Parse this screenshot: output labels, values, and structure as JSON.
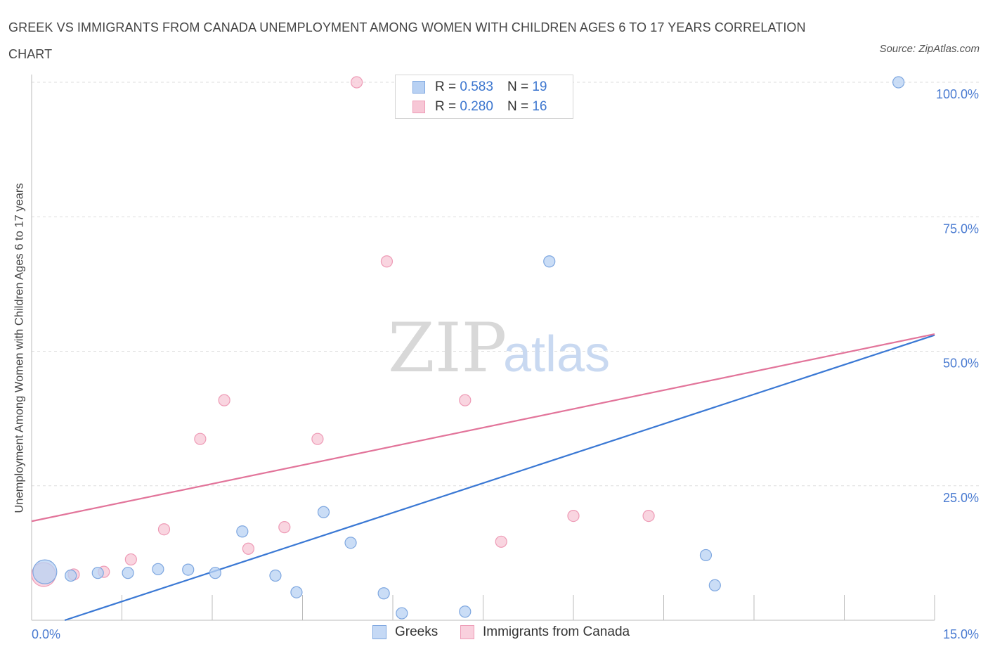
{
  "title": "GREEK VS IMMIGRANTS FROM CANADA UNEMPLOYMENT AMONG WOMEN WITH CHILDREN AGES 6 TO 17 YEARS CORRELATION CHART",
  "source": "Source: ZipAtlas.com",
  "watermark": {
    "zip": "ZIP",
    "atlas": "atlas"
  },
  "colors": {
    "greeks_fill": "#b8d1f3",
    "greeks_stroke": "#7ea7e0",
    "greeks_line": "#3a78d4",
    "canada_fill": "#f7c7d6",
    "canada_stroke": "#ee9bb6",
    "canada_line": "#e2749a",
    "axis_label": "#4a7bd1",
    "grid": "#dddddd"
  },
  "legend": {
    "rows": [
      {
        "r_label": "R =",
        "r_value": "0.583",
        "n_label": "N =",
        "n_value": "19"
      },
      {
        "r_label": "R =",
        "r_value": "0.280",
        "n_label": "N =",
        "n_value": "16"
      }
    ]
  },
  "chart_data": {
    "type": "scatter",
    "title": "GREEK VS IMMIGRANTS FROM CANADA UNEMPLOYMENT AMONG WOMEN WITH CHILDREN AGES 6 TO 17 YEARS CORRELATION CHART",
    "xlabel": "",
    "ylabel": "Unemployment Among Women with Children Ages 6 to 17 years",
    "xlim": [
      0,
      15
    ],
    "ylim": [
      0,
      100
    ],
    "x_tick_labels": [
      "0.0%",
      "15.0%"
    ],
    "y_ticks": [
      25,
      50,
      75,
      100
    ],
    "y_tick_labels": [
      "25.0%",
      "50.0%",
      "75.0%",
      "100.0%"
    ],
    "grid": true,
    "legend_position": "top-center",
    "series": [
      {
        "name": "Greeks",
        "r": 0.583,
        "n": 19,
        "points": [
          {
            "x": 0.22,
            "y": 9.0,
            "size": "large"
          },
          {
            "x": 0.65,
            "y": 8.3
          },
          {
            "x": 1.1,
            "y": 8.8
          },
          {
            "x": 1.6,
            "y": 8.8
          },
          {
            "x": 2.1,
            "y": 9.5
          },
          {
            "x": 2.6,
            "y": 9.4
          },
          {
            "x": 3.05,
            "y": 8.8
          },
          {
            "x": 3.5,
            "y": 16.5
          },
          {
            "x": 4.05,
            "y": 8.3
          },
          {
            "x": 4.4,
            "y": 5.2
          },
          {
            "x": 4.85,
            "y": 20.1
          },
          {
            "x": 5.3,
            "y": 14.4
          },
          {
            "x": 5.85,
            "y": 5.0
          },
          {
            "x": 6.15,
            "y": 1.3
          },
          {
            "x": 7.2,
            "y": 1.6
          },
          {
            "x": 8.6,
            "y": 66.7
          },
          {
            "x": 11.2,
            "y": 12.1
          },
          {
            "x": 11.35,
            "y": 6.5
          },
          {
            "x": 14.4,
            "y": 100.0
          }
        ],
        "trend": {
          "x": [
            0.55,
            15.0
          ],
          "y": [
            0.0,
            53.0
          ]
        }
      },
      {
        "name": "Immigrants from Canada",
        "r": 0.28,
        "n": 16,
        "points": [
          {
            "x": 0.2,
            "y": 8.5,
            "size": "large"
          },
          {
            "x": 0.7,
            "y": 8.5
          },
          {
            "x": 1.2,
            "y": 9.0
          },
          {
            "x": 1.65,
            "y": 11.3
          },
          {
            "x": 2.2,
            "y": 16.9
          },
          {
            "x": 2.8,
            "y": 33.7
          },
          {
            "x": 3.2,
            "y": 40.9
          },
          {
            "x": 3.6,
            "y": 13.3
          },
          {
            "x": 4.2,
            "y": 17.3
          },
          {
            "x": 4.75,
            "y": 33.7
          },
          {
            "x": 5.4,
            "y": 100.0
          },
          {
            "x": 5.9,
            "y": 66.7
          },
          {
            "x": 7.2,
            "y": 40.9
          },
          {
            "x": 7.8,
            "y": 14.6
          },
          {
            "x": 9.0,
            "y": 19.4
          },
          {
            "x": 10.25,
            "y": 19.4
          }
        ],
        "trend": {
          "x": [
            0.0,
            15.0
          ],
          "y": [
            18.4,
            53.2
          ]
        }
      }
    ]
  }
}
